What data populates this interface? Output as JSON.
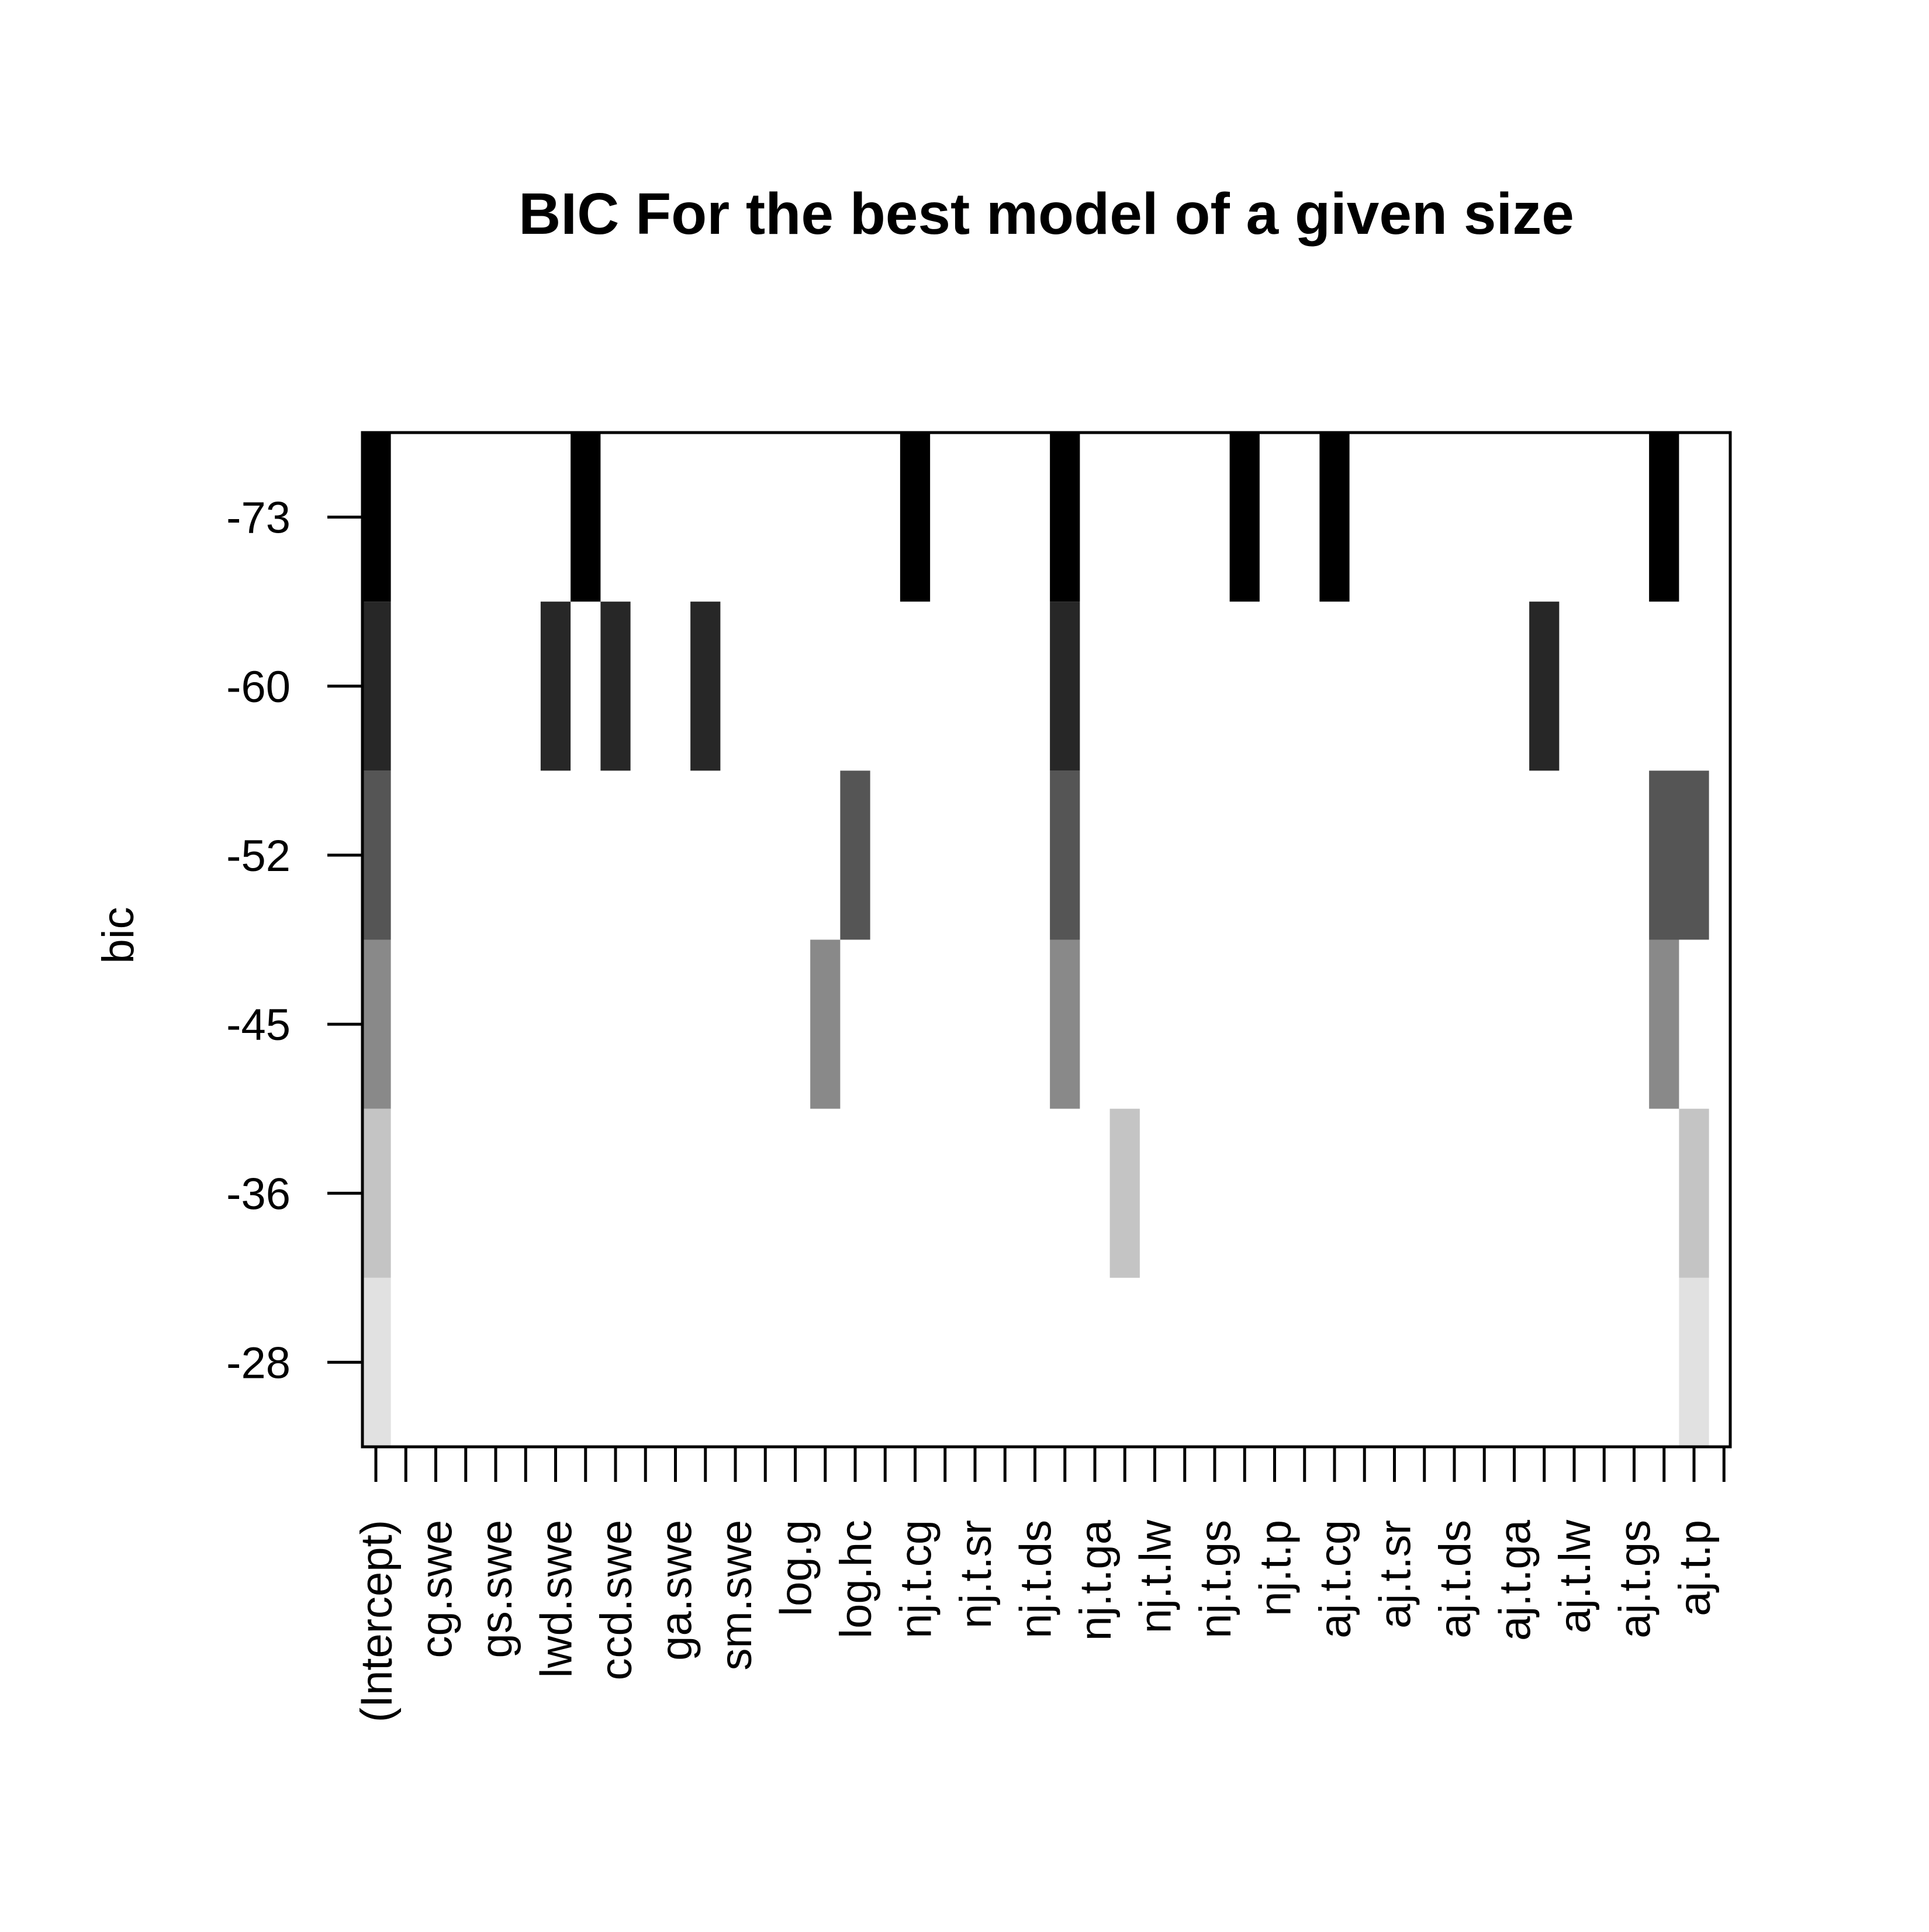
{
  "chart_data": {
    "type": "heatmap",
    "title": "BIC For the best model of a given size",
    "ylabel": "bic",
    "xlabel": "",
    "variables": [
      "(Intercept)",
      "cg.swe",
      "gs.swe",
      "lwd.swe",
      "ccd.swe",
      "ga.swe",
      "sm.swe",
      "log.g",
      "log.hc",
      "nj.t.cg",
      "nj.t.sr",
      "nj.t.ds",
      "nj.t.ga",
      "nj.t.lw",
      "nj.t.gs",
      "nj.t.p",
      "aj.t.cg",
      "aj.t.sr",
      "aj.t.ds",
      "aj.t.ga",
      "aj.t.lw",
      "aj.t.gs",
      "aj.t.p"
    ],
    "x_tick_count": 46,
    "bic_levels": [
      -28,
      -36,
      -45,
      -52,
      -60,
      -73
    ],
    "level_shades": [
      "#e1e1e1",
      "#c4c4c4",
      "#898989",
      "#555555",
      "#272727",
      "#000000"
    ],
    "models": [
      {
        "bic": -28,
        "cells": [
          [
            0,
            1
          ],
          [
            44,
            45
          ]
        ]
      },
      {
        "bic": -36,
        "cells": [
          [
            0,
            1
          ],
          [
            25,
            26
          ],
          [
            44,
            45
          ]
        ]
      },
      {
        "bic": -45,
        "cells": [
          [
            0,
            1
          ],
          [
            15,
            16
          ],
          [
            23,
            24
          ],
          [
            43,
            44
          ]
        ]
      },
      {
        "bic": -52,
        "cells": [
          [
            0,
            1
          ],
          [
            16,
            17
          ],
          [
            23,
            24
          ],
          [
            43,
            45
          ]
        ]
      },
      {
        "bic": -60,
        "cells": [
          [
            0,
            1
          ],
          [
            6,
            7
          ],
          [
            8,
            9
          ],
          [
            11,
            12
          ],
          [
            23,
            24
          ],
          [
            39,
            40
          ]
        ]
      },
      {
        "bic": -73,
        "cells": [
          [
            0,
            1
          ],
          [
            7,
            8
          ],
          [
            18,
            19
          ],
          [
            23,
            24
          ],
          [
            29,
            30
          ],
          [
            32,
            33
          ],
          [
            43,
            44
          ]
        ]
      }
    ]
  }
}
